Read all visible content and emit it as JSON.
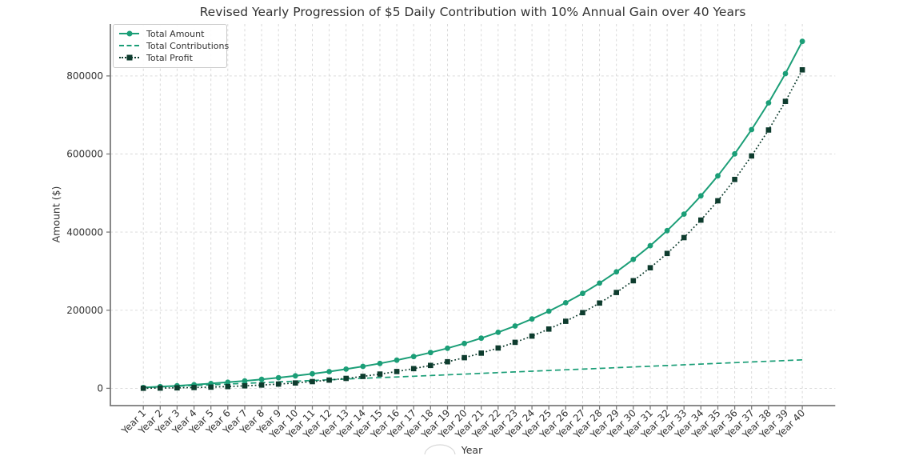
{
  "chart_data": {
    "type": "line",
    "title": "Revised Yearly Progression of $5 Daily Contribution with 10% Annual Gain over 40 Years",
    "xlabel": "Year",
    "ylabel": "Amount ($)",
    "grid": true,
    "legend_position": "upper-left",
    "xlim": [
      -0.95,
      41.95
    ],
    "ylim": [
      -44233,
      932921
    ],
    "yticks": [
      0,
      200000,
      400000,
      600000,
      800000
    ],
    "categories": [
      "Year 1",
      "Year 2",
      "Year 3",
      "Year 4",
      "Year 5",
      "Year 6",
      "Year 7",
      "Year 8",
      "Year 9",
      "Year 10",
      "Year 11",
      "Year 12",
      "Year 13",
      "Year 14",
      "Year 15",
      "Year 16",
      "Year 17",
      "Year 18",
      "Year 19",
      "Year 20",
      "Year 21",
      "Year 22",
      "Year 23",
      "Year 24",
      "Year 25",
      "Year 26",
      "Year 27",
      "Year 28",
      "Year 29",
      "Year 30",
      "Year 31",
      "Year 32",
      "Year 33",
      "Year 34",
      "Year 35",
      "Year 36",
      "Year 37",
      "Year 38",
      "Year 39",
      "Year 40"
    ],
    "colors": {
      "grid": "#d6d6d6",
      "spine": "#7a7a7a",
      "tick_text": "#333333",
      "title_text": "#343434"
    },
    "series": [
      {
        "name": "Total Amount",
        "color": "#1b9e77",
        "line_style": "solid",
        "marker": "circle",
        "values": [
          2008,
          4216,
          6645,
          9317,
          12256,
          15489,
          19046,
          22958,
          27261,
          31994,
          37201,
          42929,
          49229,
          56160,
          63783,
          72169,
          81393,
          91540,
          102702,
          114980,
          128485,
          143341,
          159683,
          177658,
          197432,
          219182,
          243108,
          269426,
          298377,
          330222,
          365251,
          403784,
          446170,
          492794,
          544081,
          600497,
          662554,
          730847,
          805956,
          888505
        ]
      },
      {
        "name": "Total Contributions",
        "color": "#1b9e77",
        "line_style": "dashed",
        "marker": "none",
        "values": [
          1825,
          3650,
          5475,
          7300,
          9125,
          10950,
          12775,
          14600,
          16425,
          18250,
          20075,
          21900,
          23725,
          25550,
          27375,
          29200,
          31025,
          32850,
          34675,
          36500,
          38325,
          40150,
          41975,
          43800,
          45625,
          47450,
          49275,
          51100,
          52925,
          54750,
          56575,
          58400,
          60225,
          62050,
          63875,
          65700,
          67525,
          69350,
          71175,
          73000
        ]
      },
      {
        "name": "Total Profit",
        "color": "#0e3c2e",
        "line_style": "dotted",
        "marker": "square",
        "values": [
          183,
          566,
          1170,
          2017,
          3131,
          4539,
          6271,
          8358,
          10836,
          13744,
          17126,
          21029,
          25504,
          30610,
          36408,
          42969,
          50368,
          58690,
          68027,
          78480,
          90160,
          103191,
          117708,
          133858,
          151807,
          171732,
          193833,
          218326,
          245452,
          275472,
          308676,
          345384,
          385945,
          430744,
          480206,
          534797,
          595029,
          661497,
          734781,
          815505
        ]
      }
    ]
  }
}
